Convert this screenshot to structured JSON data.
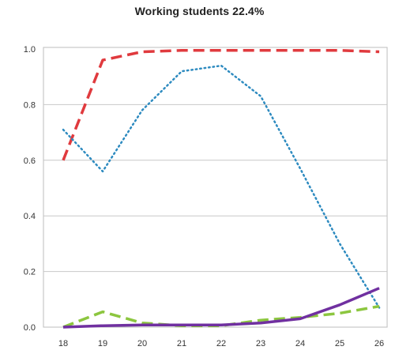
{
  "chart_data": {
    "type": "line",
    "title": "Working students 22.4%",
    "xlabel": "",
    "ylabel": "",
    "x": [
      18,
      19,
      20,
      21,
      22,
      23,
      24,
      25,
      26
    ],
    "xticks": [
      "18",
      "19",
      "20",
      "21",
      "22",
      "23",
      "24",
      "25",
      "26"
    ],
    "ylim": [
      0,
      1.0
    ],
    "yticks": [
      "0.0",
      "0.2",
      "0.4",
      "0.6",
      "0.8",
      "1.0"
    ],
    "grid": "horizontal",
    "legend": "none",
    "series": [
      {
        "color": "#e03a3e",
        "style": "dashed",
        "values": [
          0.6,
          0.96,
          0.99,
          0.995,
          0.995,
          0.995,
          0.995,
          0.995,
          0.99
        ]
      },
      {
        "color": "#2e8bc0",
        "style": "dotted",
        "values": [
          0.71,
          0.56,
          0.78,
          0.92,
          0.94,
          0.83,
          0.57,
          0.3,
          0.07
        ]
      },
      {
        "color": "#8cc63f",
        "style": "dashed",
        "values": [
          0.0,
          0.055,
          0.015,
          0.005,
          0.005,
          0.025,
          0.035,
          0.05,
          0.075
        ]
      },
      {
        "color": "#7030a0",
        "style": "solid",
        "values": [
          0.0,
          0.005,
          0.008,
          0.008,
          0.008,
          0.015,
          0.03,
          0.08,
          0.14
        ]
      }
    ]
  }
}
